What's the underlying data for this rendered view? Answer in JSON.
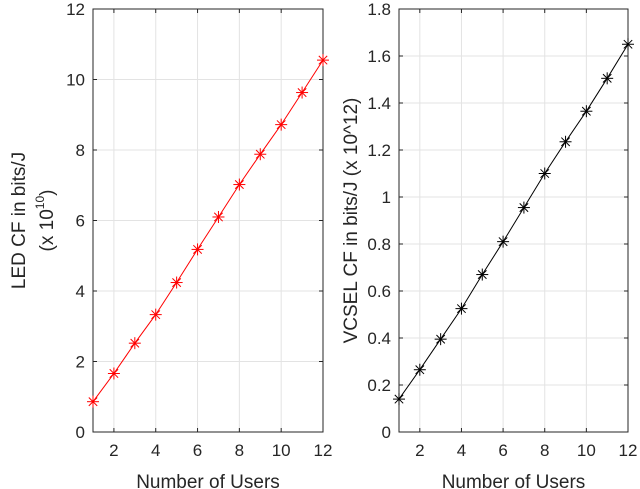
{
  "chart_data": [
    {
      "type": "line",
      "xlabel": "Number of Users",
      "ylabel_line1": "LED CF in bits/J",
      "ylabel_line2_prefix": "(x 10",
      "ylabel_line2_exponent": "10",
      "ylabel_line2_suffix": ")",
      "xlim": [
        1,
        12
      ],
      "ylim": [
        0,
        12
      ],
      "xticks": [
        2,
        4,
        6,
        8,
        10,
        12
      ],
      "yticks": [
        0,
        2,
        4,
        6,
        8,
        10,
        12
      ],
      "grid": true,
      "marker": "asterisk",
      "color": "#ff0000",
      "series": [
        {
          "x": [
            1,
            2,
            3,
            4,
            5,
            6,
            7,
            8,
            9,
            10,
            11,
            12
          ],
          "y": [
            0.86,
            1.66,
            2.52,
            3.33,
            4.24,
            5.18,
            6.1,
            7.02,
            7.88,
            8.72,
            9.63,
            10.55
          ]
        }
      ]
    },
    {
      "type": "line",
      "xlabel": "Number of Users",
      "ylabel": "VCSEL CF in bits/J (x 10^12)",
      "xlim": [
        1,
        12
      ],
      "ylim": [
        0,
        1.8
      ],
      "xticks": [
        2,
        4,
        6,
        8,
        10,
        12
      ],
      "yticks": [
        0,
        0.2,
        0.4,
        0.6,
        0.8,
        1,
        1.2,
        1.4,
        1.6,
        1.8
      ],
      "grid": true,
      "marker": "asterisk",
      "color": "#000000",
      "series": [
        {
          "x": [
            1,
            2,
            3,
            4,
            5,
            6,
            7,
            8,
            9,
            10,
            11,
            12
          ],
          "y": [
            0.14,
            0.265,
            0.395,
            0.525,
            0.67,
            0.81,
            0.955,
            1.1,
            1.235,
            1.365,
            1.505,
            1.65
          ]
        }
      ]
    }
  ]
}
